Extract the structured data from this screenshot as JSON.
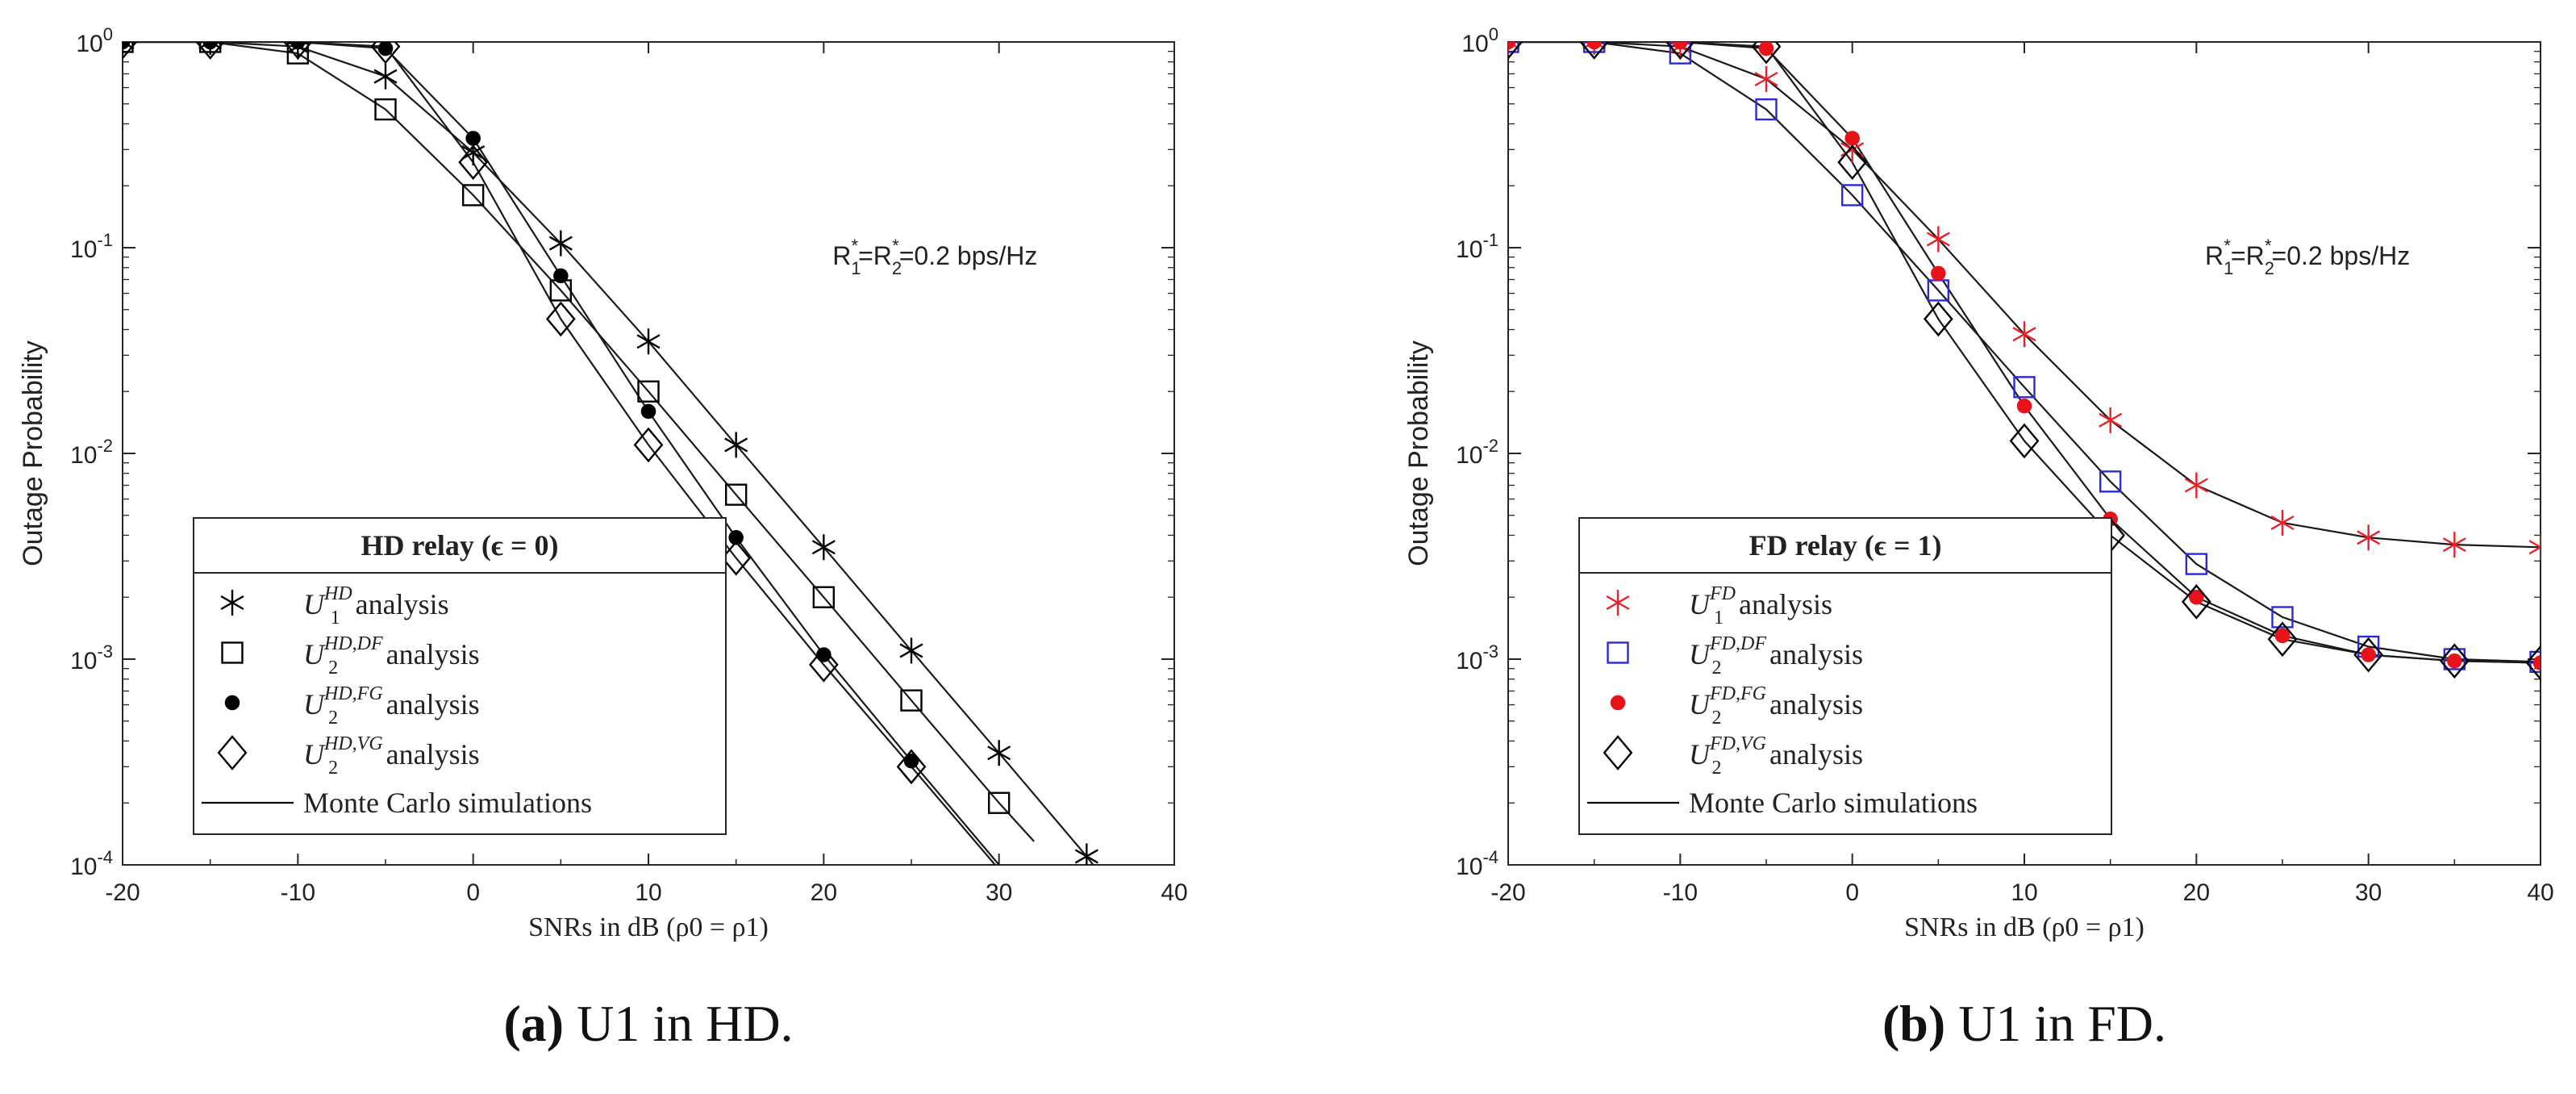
{
  "chart_data": [
    {
      "type": "line",
      "panel_label": "(a)",
      "caption": "U1 in HD.",
      "xlabel": "SNRs in dB (ρ0 = ρ1)",
      "ylabel": "Outage Probability",
      "x_ticks": [
        "-20",
        "-10",
        "0",
        "10",
        "20",
        "30",
        "40"
      ],
      "y_ticks": [
        {
          "base": "10",
          "exp": "0"
        },
        {
          "base": "10",
          "exp": "-1"
        },
        {
          "base": "10",
          "exp": "-2"
        },
        {
          "base": "10",
          "exp": "-3"
        },
        {
          "base": "10",
          "exp": "-4"
        }
      ],
      "xlim": [
        -20,
        40
      ],
      "ylim": [
        0.0001,
        1
      ],
      "y_scale": "log",
      "annotation": "R1*=R2*=0.2 bps/Hz",
      "annotation_pos": "upper-right",
      "legend": {
        "title": "HD relay (ϵ = 0)",
        "placement": "bottom-left",
        "items": [
          {
            "label": "U1^HD analysis",
            "sym": "U",
            "sub": "1",
            "sup": "HD",
            "marker": "asterisk",
            "color": "#000000"
          },
          {
            "label": "U2^HD,DF analysis",
            "sym": "U",
            "sub": "2",
            "sup": "HD,DF",
            "marker": "square",
            "color": "#000000"
          },
          {
            "label": "U2^HD,FG analysis",
            "sym": "U",
            "sub": "2",
            "sup": "HD,FG",
            "marker": "dot",
            "color": "#000000"
          },
          {
            "label": "U2^HD,VG analysis",
            "sym": "U",
            "sub": "2",
            "sup": "HD,VG",
            "marker": "diamond",
            "color": "#000000"
          },
          {
            "label": "Monte Carlo simulations",
            "marker": "line",
            "color": "#000000"
          }
        ],
        "suffix": "analysis"
      },
      "series": [
        {
          "name": "U1^HD analysis",
          "marker": "asterisk",
          "color": "#000000",
          "x": [
            -20,
            -15,
            -10,
            -5,
            0,
            5,
            10,
            15,
            20,
            25,
            30,
            35
          ],
          "values": [
            1.0,
            1.0,
            0.95,
            0.68,
            0.29,
            0.105,
            0.035,
            0.011,
            0.0035,
            0.0011,
            0.00035,
            0.00011
          ]
        },
        {
          "name": "U2^HD,DF analysis",
          "marker": "square",
          "color": "#000000",
          "x": [
            -20,
            -15,
            -10,
            -5,
            0,
            5,
            10,
            15,
            20,
            25,
            30
          ],
          "values": [
            1.0,
            1.0,
            0.88,
            0.47,
            0.18,
            0.062,
            0.02,
            0.0063,
            0.002,
            0.00063,
            0.0002
          ]
        },
        {
          "name": "U2^HD,FG analysis",
          "marker": "dot",
          "color": "#000000",
          "x": [
            -20,
            -15,
            -10,
            -5,
            0,
            5,
            10,
            15,
            20,
            25
          ],
          "values": [
            1.0,
            1.0,
            1.0,
            0.93,
            0.34,
            0.073,
            0.016,
            0.0039,
            0.00105,
            0.00032
          ]
        },
        {
          "name": "U2^HD,VG analysis",
          "marker": "diamond",
          "color": "#000000",
          "x": [
            -20,
            -15,
            -10,
            -5,
            0,
            5,
            10,
            15,
            20,
            25
          ],
          "values": [
            1.0,
            1.0,
            1.0,
            0.95,
            0.26,
            0.045,
            0.011,
            0.0031,
            0.00094,
            0.0003
          ]
        }
      ],
      "sim_curves": [
        {
          "x": [
            -20,
            -15,
            -10,
            -5,
            0,
            5,
            10,
            15,
            20,
            25,
            30,
            35,
            36.5
          ],
          "values": [
            1.0,
            1.0,
            0.95,
            0.68,
            0.29,
            0.105,
            0.035,
            0.011,
            0.0035,
            0.0011,
            0.00035,
            0.00011,
            7.5e-05
          ]
        },
        {
          "x": [
            -20,
            -15,
            -10,
            -5,
            0,
            5,
            10,
            15,
            20,
            25,
            30,
            32
          ],
          "values": [
            1.0,
            1.0,
            0.88,
            0.47,
            0.18,
            0.062,
            0.02,
            0.0063,
            0.002,
            0.00063,
            0.0002,
            0.00013
          ]
        },
        {
          "x": [
            -20,
            -15,
            -10,
            -5,
            0,
            5,
            10,
            15,
            20,
            25,
            30
          ],
          "values": [
            1.0,
            1.0,
            1.0,
            0.93,
            0.34,
            0.073,
            0.016,
            0.0039,
            0.00105,
            0.00032,
            0.0001
          ]
        },
        {
          "x": [
            -20,
            -15,
            -10,
            -5,
            0,
            5,
            10,
            15,
            20,
            25,
            30
          ],
          "values": [
            1.0,
            1.0,
            1.0,
            0.95,
            0.26,
            0.045,
            0.011,
            0.0031,
            0.00094,
            0.0003,
            9.5e-05
          ]
        }
      ]
    },
    {
      "type": "line",
      "panel_label": "(b)",
      "caption": "U1 in FD.",
      "xlabel": "SNRs in dB (ρ0 = ρ1)",
      "ylabel": "Outage Probability",
      "x_ticks": [
        "-20",
        "-10",
        "0",
        "10",
        "20",
        "30",
        "40"
      ],
      "y_ticks": [
        {
          "base": "10",
          "exp": "0"
        },
        {
          "base": "10",
          "exp": "-1"
        },
        {
          "base": "10",
          "exp": "-2"
        },
        {
          "base": "10",
          "exp": "-3"
        },
        {
          "base": "10",
          "exp": "-4"
        }
      ],
      "xlim": [
        -20,
        40
      ],
      "ylim": [
        0.0001,
        1
      ],
      "y_scale": "log",
      "annotation": "R1*=R2*=0.2 bps/Hz",
      "annotation_pos": "upper-right",
      "legend": {
        "title": "FD relay (ϵ = 1)",
        "placement": "bottom-left",
        "items": [
          {
            "label": "U1^FD analysis",
            "sym": "U",
            "sub": "1",
            "sup": "FD",
            "marker": "asterisk",
            "color": "#e8222a"
          },
          {
            "label": "U2^FD,DF analysis",
            "sym": "U",
            "sub": "2",
            "sup": "FD,DF",
            "marker": "square",
            "color": "#2b2bd6"
          },
          {
            "label": "U2^FD,FG analysis",
            "sym": "U",
            "sub": "2",
            "sup": "FD,FG",
            "marker": "dot",
            "color": "#e8121a"
          },
          {
            "label": "U2^FD,VG analysis",
            "sym": "U",
            "sub": "2",
            "sup": "FD,VG",
            "marker": "diamond",
            "color": "#000000"
          },
          {
            "label": "Monte Carlo simulations",
            "marker": "line",
            "color": "#000000"
          }
        ],
        "suffix": "analysis"
      },
      "series": [
        {
          "name": "U1^FD analysis",
          "marker": "asterisk",
          "color": "#e8222a",
          "x": [
            -20,
            -15,
            -10,
            -5,
            0,
            5,
            10,
            15,
            20,
            25,
            30,
            35,
            40
          ],
          "values": [
            1.0,
            1.0,
            0.95,
            0.66,
            0.3,
            0.11,
            0.038,
            0.0145,
            0.007,
            0.0046,
            0.0039,
            0.0036,
            0.0035
          ]
        },
        {
          "name": "U2^FD,DF analysis",
          "marker": "square",
          "color": "#2b2bd6",
          "x": [
            -20,
            -15,
            -10,
            -5,
            0,
            5,
            10,
            15,
            20,
            25,
            30,
            35,
            40
          ],
          "values": [
            1.0,
            1.0,
            0.88,
            0.47,
            0.18,
            0.062,
            0.021,
            0.0073,
            0.0029,
            0.0016,
            0.00115,
            0.001,
            0.00097
          ]
        },
        {
          "name": "U2^FD,FG analysis",
          "marker": "dot",
          "color": "#e8121a",
          "x": [
            -20,
            -15,
            -10,
            -5,
            0,
            5,
            10,
            15,
            20,
            25,
            30,
            35,
            40
          ],
          "values": [
            1.0,
            1.0,
            1.0,
            0.93,
            0.34,
            0.075,
            0.017,
            0.0048,
            0.002,
            0.0013,
            0.00105,
            0.00098,
            0.00096
          ]
        },
        {
          "name": "U2^FD,VG analysis",
          "marker": "diamond",
          "color": "#000000",
          "x": [
            -20,
            -15,
            -10,
            -5,
            0,
            5,
            10,
            15,
            20,
            25,
            30,
            35,
            40
          ],
          "values": [
            1.0,
            1.0,
            1.0,
            0.95,
            0.26,
            0.045,
            0.0115,
            0.004,
            0.0019,
            0.00125,
            0.00105,
            0.00098,
            0.00096
          ]
        }
      ],
      "sim_curves": [
        {
          "x": [
            -20,
            -15,
            -10,
            -5,
            0,
            5,
            10,
            15,
            20,
            25,
            30,
            35,
            40
          ],
          "values": [
            1.0,
            1.0,
            0.95,
            0.66,
            0.3,
            0.11,
            0.038,
            0.0145,
            0.007,
            0.0046,
            0.0039,
            0.0036,
            0.0035
          ]
        },
        {
          "x": [
            -20,
            -15,
            -10,
            -5,
            0,
            5,
            10,
            15,
            20,
            25,
            30,
            35,
            40
          ],
          "values": [
            1.0,
            1.0,
            0.88,
            0.47,
            0.18,
            0.062,
            0.021,
            0.0073,
            0.0029,
            0.0016,
            0.00115,
            0.001,
            0.00097
          ]
        },
        {
          "x": [
            -20,
            -15,
            -10,
            -5,
            0,
            5,
            10,
            15,
            20,
            25,
            30,
            35,
            40
          ],
          "values": [
            1.0,
            1.0,
            1.0,
            0.93,
            0.34,
            0.075,
            0.017,
            0.0048,
            0.002,
            0.0013,
            0.00105,
            0.00098,
            0.00096
          ]
        },
        {
          "x": [
            -20,
            -15,
            -10,
            -5,
            0,
            5,
            10,
            15,
            20,
            25,
            30,
            35,
            40
          ],
          "values": [
            1.0,
            1.0,
            1.0,
            0.95,
            0.26,
            0.045,
            0.0115,
            0.004,
            0.0019,
            0.00125,
            0.00105,
            0.00098,
            0.00096
          ]
        }
      ]
    }
  ]
}
